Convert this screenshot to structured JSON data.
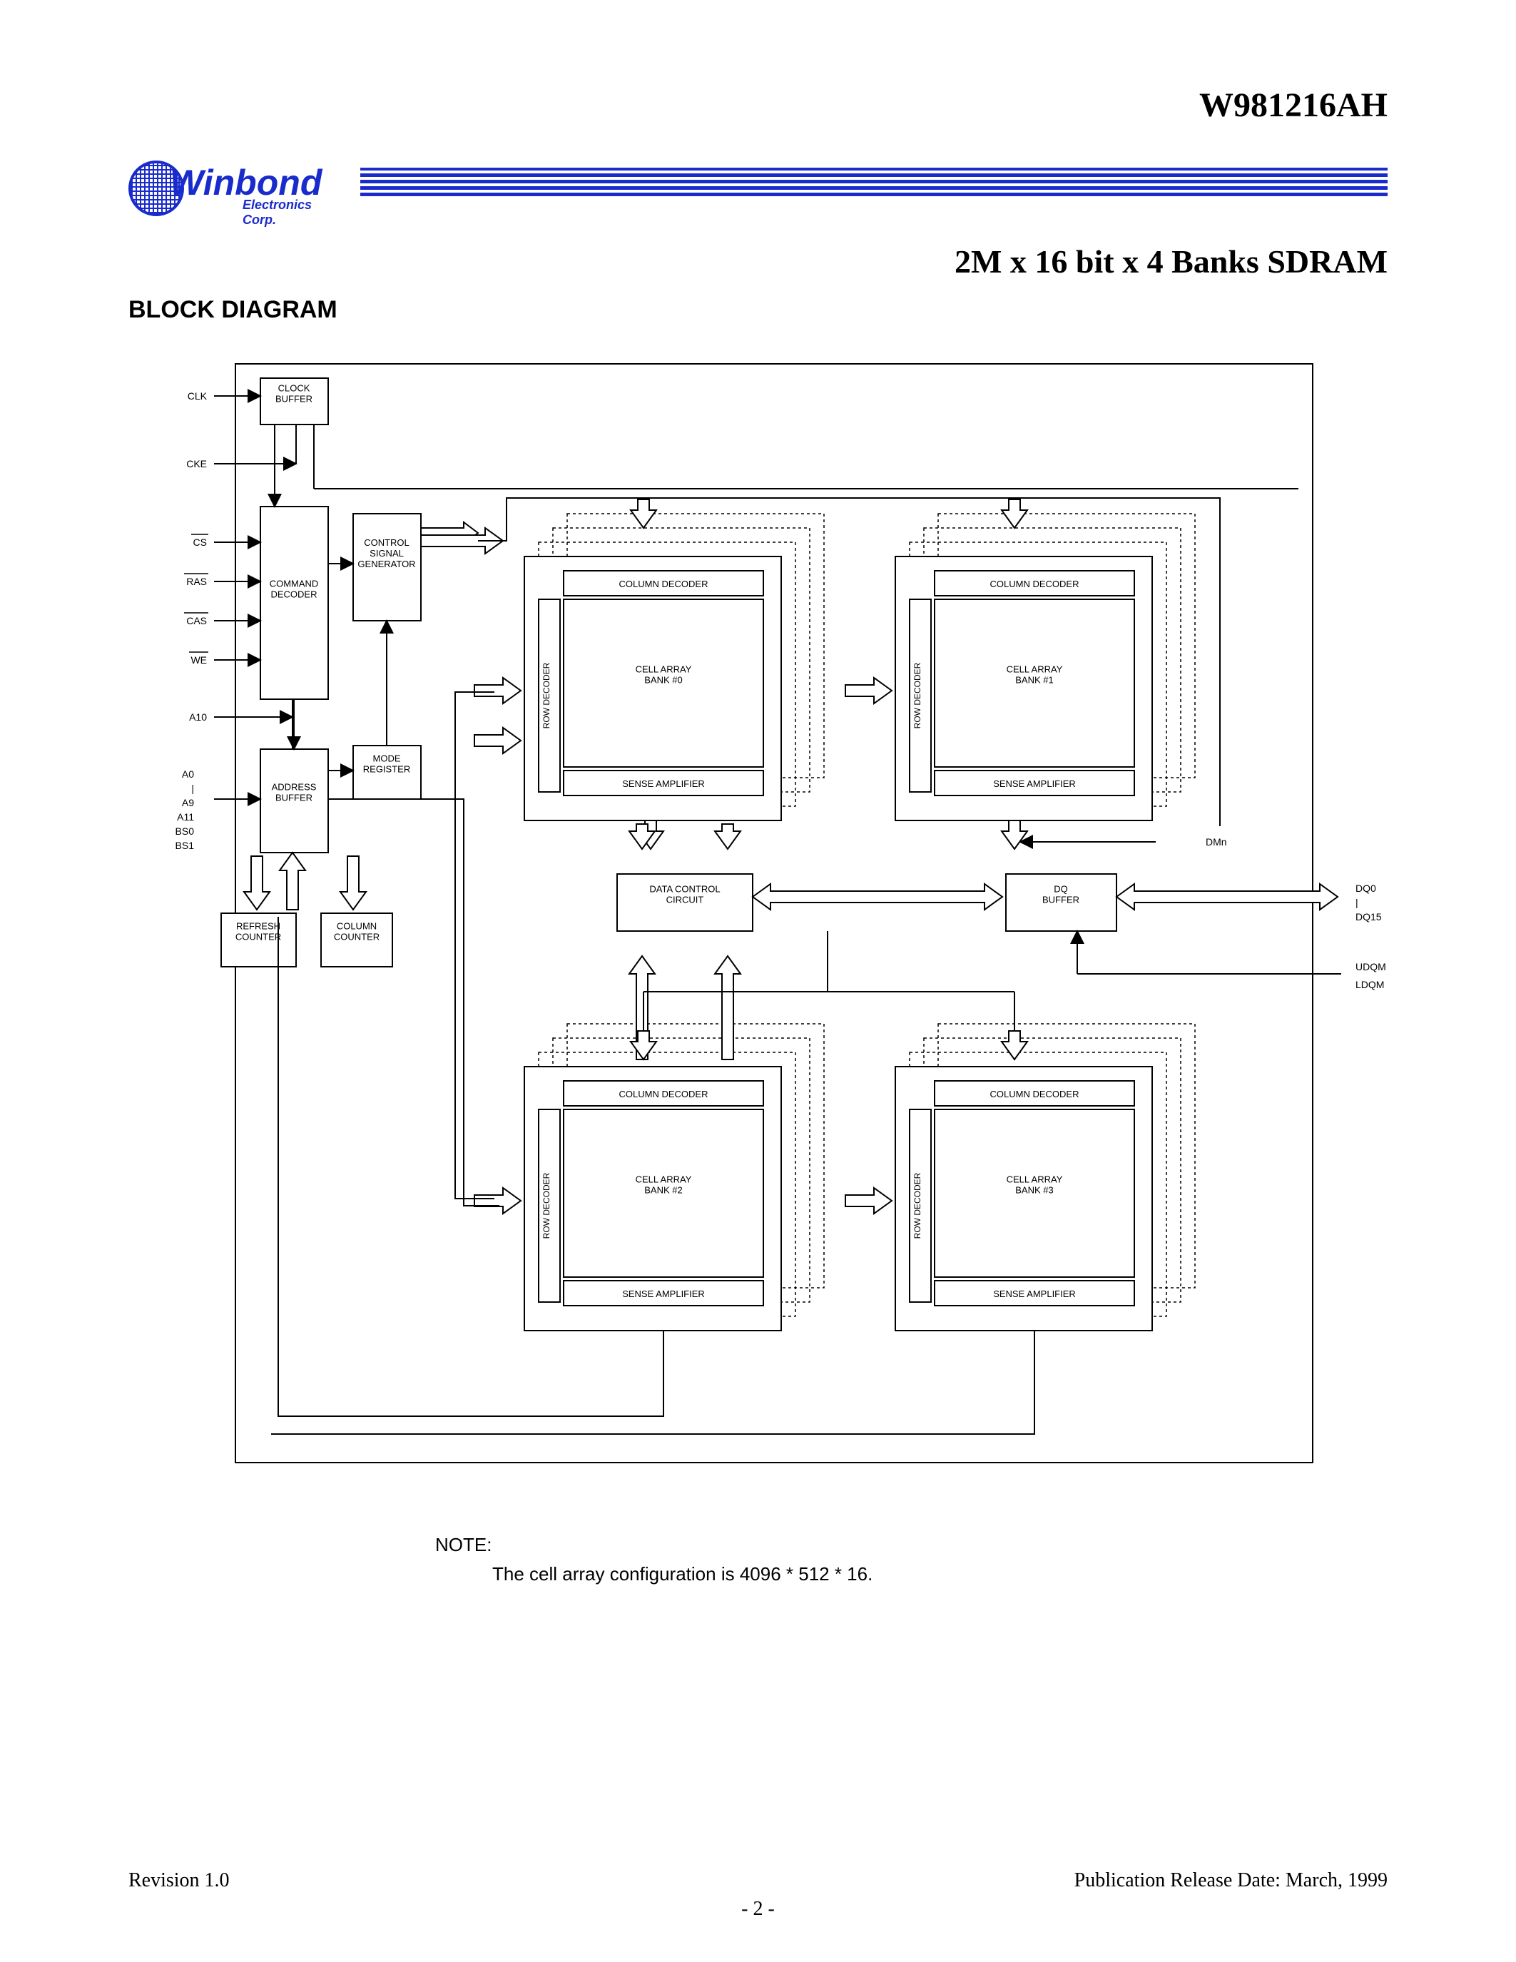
{
  "header": {
    "part_number": "W981216AH",
    "logo_main": "Winbond",
    "logo_sub": "Electronics Corp.",
    "subtitle": "2M x 16 bit x 4 Banks SDRAM",
    "section": "BLOCK DIAGRAM",
    "rule_color": "#1a2bcc",
    "logo_color": "#1a2bcc"
  },
  "diagram": {
    "type": "block-diagram",
    "background_color": "#ffffff",
    "stroke_color": "#000000",
    "font_family": "Arial",
    "label_fontsize": 13,
    "pin_fontsize": 14,
    "signals_left": {
      "clk": "CLK",
      "cke": "CKE",
      "cs": "CS",
      "ras": "RAS",
      "cas": "CAS",
      "we": "WE",
      "a10": "A10",
      "a_low": "A0",
      "a_sep": "|",
      "a_hi": "A9",
      "a11": "A11",
      "bs0": "BS0",
      "bs1": "BS1"
    },
    "signals_right": {
      "dmn": "DMn",
      "dq0": "DQ0",
      "dq_sep": "|",
      "dq15": "DQ15",
      "udqm": "UDQM",
      "ldqm": "LDQM"
    },
    "blocks": {
      "clock_buffer": "CLOCK\nBUFFER",
      "command_decoder": "COMMAND\nDECODER",
      "control_signal_generator": "CONTROL\nSIGNAL\nGENERATOR",
      "mode_register": "MODE\nREGISTER",
      "address_buffer": "ADDRESS\nBUFFER",
      "refresh_counter": "REFRESH\nCOUNTER",
      "column_counter": "COLUMN\nCOUNTER",
      "data_control_circuit": "DATA CONTROL\nCIRCUIT",
      "dq_buffer": "DQ\nBUFFER",
      "column_decoder": "COLUMN DECODER",
      "row_decoder": "ROW DECODER",
      "sense_amplifier": "SENSE AMPLIFIER",
      "bank0": "CELL ARRAY\nBANK #0",
      "bank1": "CELL ARRAY\nBANK #1",
      "bank2": "CELL ARRAY\nBANK #2",
      "bank3": "CELL ARRAY\nBANK #3"
    }
  },
  "note": {
    "label": "NOTE:",
    "text": "The cell array configuration is 4096 * 512 * 16."
  },
  "footer": {
    "revision": "Revision 1.0",
    "date": "Publication Release Date: March, 1999",
    "page": "- 2 -"
  }
}
